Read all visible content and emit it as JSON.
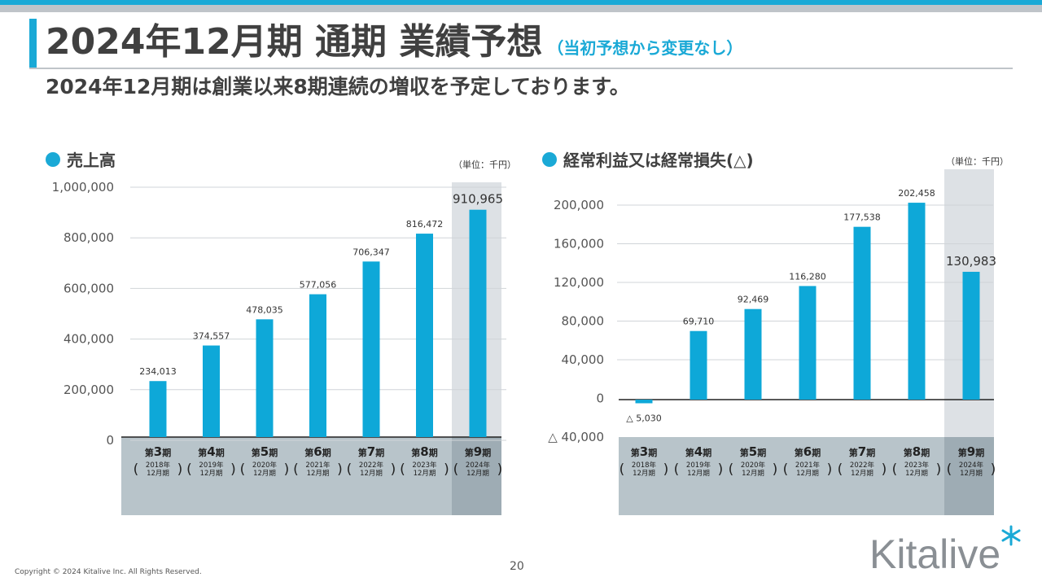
{
  "title": {
    "main": "2024年12月期 通期 業績予想",
    "note": "（当初予想から変更なし）"
  },
  "subtitle": "2024年12月期は創業以来8期連続の増収を予定しております。",
  "footer": {
    "copyright": "Copyright © 2024 Kitalive Inc. All Rights Reserved.",
    "page": "20"
  },
  "logo": {
    "text": "Kitalive"
  },
  "colors": {
    "accent": "#1aa9d6",
    "bar": "#0ea8d8",
    "axis_band": "#b8c4ca",
    "highlight_band": "#dde1e5",
    "highlight_axis": "#9eacb4"
  },
  "chart_data": [
    {
      "type": "bar",
      "title": "売上高",
      "unit": "（単位：千円）",
      "categories": [
        {
          "term": "第",
          "num": "3",
          "suffix": "期",
          "year": "2018年",
          "month": "12月期"
        },
        {
          "term": "第",
          "num": "4",
          "suffix": "期",
          "year": "2019年",
          "month": "12月期"
        },
        {
          "term": "第",
          "num": "5",
          "suffix": "期",
          "year": "2020年",
          "month": "12月期"
        },
        {
          "term": "第",
          "num": "6",
          "suffix": "期",
          "year": "2021年",
          "month": "12月期"
        },
        {
          "term": "第",
          "num": "7",
          "suffix": "期",
          "year": "2022年",
          "month": "12月期"
        },
        {
          "term": "第",
          "num": "8",
          "suffix": "期",
          "year": "2023年",
          "month": "12月期"
        },
        {
          "term": "第",
          "num": "9",
          "suffix": "期",
          "year": "2024年",
          "month": "12月期"
        }
      ],
      "values": [
        234013,
        374557,
        478035,
        577056,
        706347,
        816472,
        910965
      ],
      "value_labels": [
        "234,013",
        "374,557",
        "478,035",
        "577,056",
        "706,347",
        "816,472",
        "910,965"
      ],
      "highlight_index": 6,
      "yticks": [
        {
          "value": 0,
          "label": "0"
        },
        {
          "value": 200000,
          "label": "200,000"
        },
        {
          "value": 400000,
          "label": "400,000"
        },
        {
          "value": 600000,
          "label": "600,000"
        },
        {
          "value": 800000,
          "label": "800,000"
        },
        {
          "value": 1000000,
          "label": "1,000,000"
        }
      ],
      "ylim": [
        0,
        1000000
      ],
      "grid": true
    },
    {
      "type": "bar",
      "title": "経常利益又は経常損失(△)",
      "unit": "（単位：千円）",
      "categories": [
        {
          "term": "第",
          "num": "3",
          "suffix": "期",
          "year": "2018年",
          "month": "12月期"
        },
        {
          "term": "第",
          "num": "4",
          "suffix": "期",
          "year": "2019年",
          "month": "12月期"
        },
        {
          "term": "第",
          "num": "5",
          "suffix": "期",
          "year": "2020年",
          "month": "12月期"
        },
        {
          "term": "第",
          "num": "6",
          "suffix": "期",
          "year": "2021年",
          "month": "12月期"
        },
        {
          "term": "第",
          "num": "7",
          "suffix": "期",
          "year": "2022年",
          "month": "12月期"
        },
        {
          "term": "第",
          "num": "8",
          "suffix": "期",
          "year": "2023年",
          "month": "12月期"
        },
        {
          "term": "第",
          "num": "9",
          "suffix": "期",
          "year": "2024年",
          "month": "12月期"
        }
      ],
      "values": [
        -5030,
        69710,
        92469,
        116280,
        177538,
        202458,
        130983
      ],
      "value_labels": [
        "△ 5,030",
        "69,710",
        "92,469",
        "116,280",
        "177,538",
        "202,458",
        "130,983"
      ],
      "highlight_index": 6,
      "yticks": [
        {
          "value": -40000,
          "label": "△ 40,000"
        },
        {
          "value": 0,
          "label": "0"
        },
        {
          "value": 40000,
          "label": "40,000"
        },
        {
          "value": 80000,
          "label": "80,000"
        },
        {
          "value": 120000,
          "label": "120,000"
        },
        {
          "value": 160000,
          "label": "160,000"
        },
        {
          "value": 200000,
          "label": "200,000"
        }
      ],
      "ylim": [
        -40000,
        200000
      ],
      "grid": true
    }
  ]
}
